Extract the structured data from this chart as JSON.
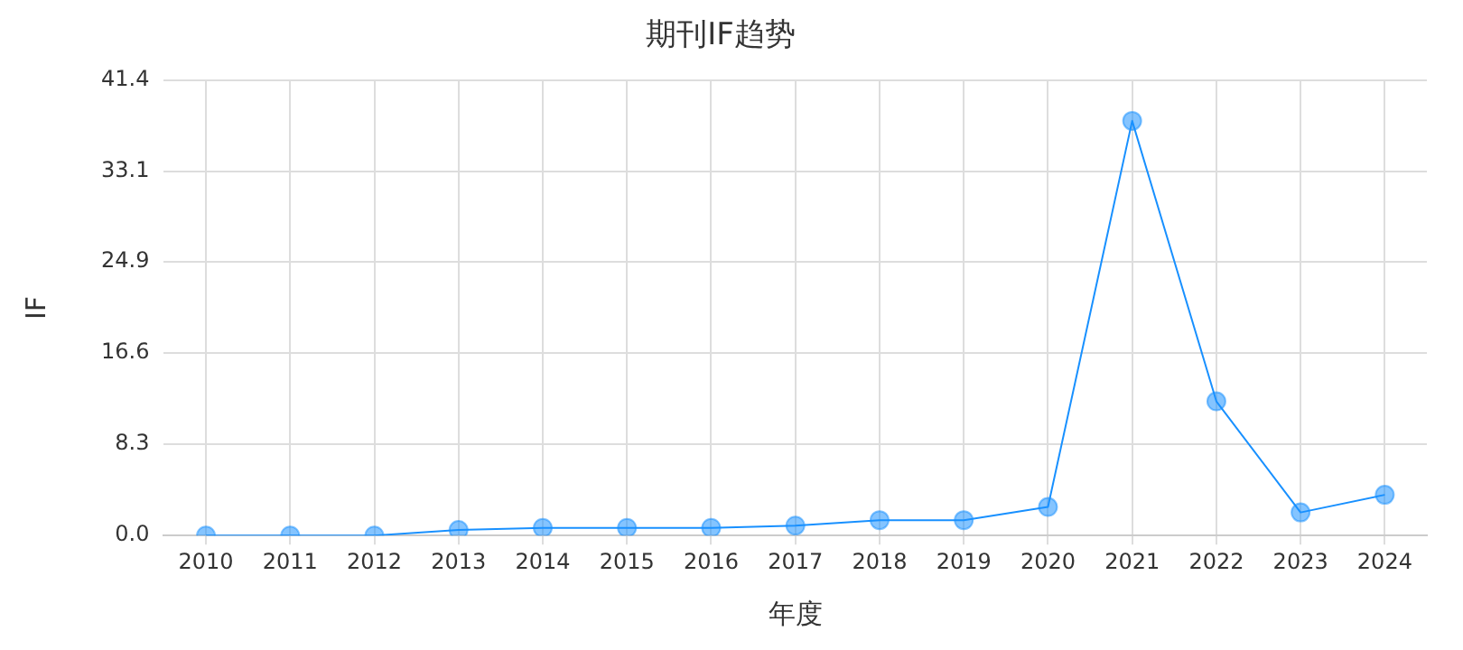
{
  "chart_data": {
    "type": "line",
    "title": "期刊IF趋势",
    "xlabel": "年度",
    "ylabel": "IF",
    "categories": [
      "2010",
      "2011",
      "2012",
      "2013",
      "2014",
      "2015",
      "2016",
      "2017",
      "2018",
      "2019",
      "2020",
      "2021",
      "2022",
      "2023",
      "2024"
    ],
    "series": [
      {
        "color": "#1890ff",
        "values": [
          0,
          0,
          0,
          0.5,
          0.7,
          0.7,
          0.7,
          0.9,
          1.4,
          1.4,
          2.6,
          37.7,
          12.2,
          2.1,
          3.7
        ]
      }
    ],
    "ylim": [
      0,
      41.4
    ],
    "yticks": [
      {
        "value": 0,
        "label": "0.0"
      },
      8.3,
      16.6,
      24.9,
      33.1,
      41.4
    ],
    "grid": true,
    "legend": false,
    "marker": "circle",
    "line_style": "solid"
  }
}
